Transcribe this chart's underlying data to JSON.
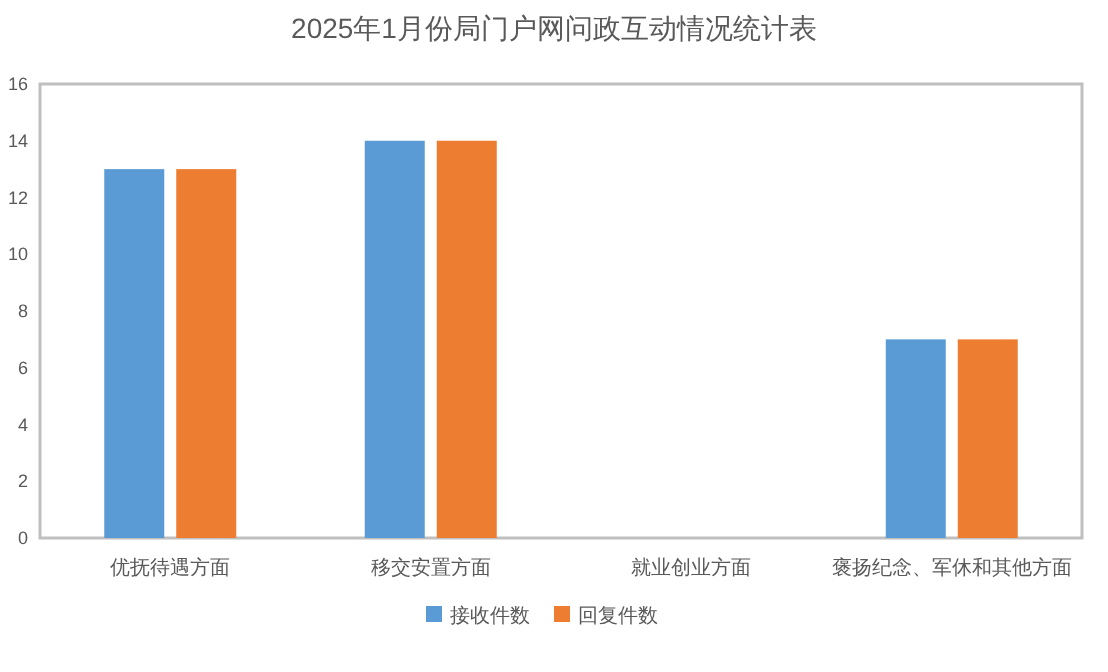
{
  "chart_data": {
    "type": "bar",
    "title": "2025年1月份局门户网问政互动情况统计表",
    "categories": [
      "优抚待遇方面",
      "移交安置方面",
      "就业创业方面",
      "褒扬纪念、军休和其他方面"
    ],
    "series": [
      {
        "name": "接收件数",
        "color": "#5b9bd5",
        "values": [
          13,
          14,
          0,
          7
        ]
      },
      {
        "name": "回复件数",
        "color": "#ed7d31",
        "values": [
          13,
          14,
          0,
          7
        ]
      }
    ],
    "ylim": [
      0,
      16
    ],
    "yticks": [
      0,
      2,
      4,
      6,
      8,
      10,
      12,
      14,
      16
    ],
    "grid": false,
    "legend": "bottom"
  }
}
